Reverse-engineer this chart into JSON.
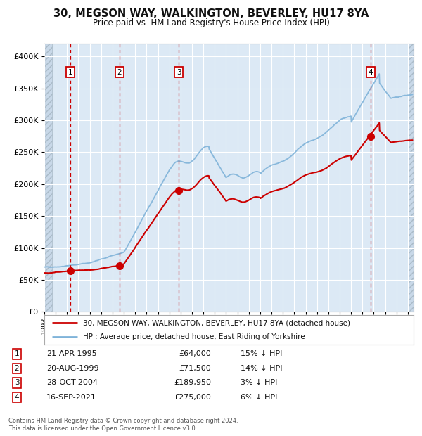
{
  "title": "30, MEGSON WAY, WALKINGTON, BEVERLEY, HU17 8YA",
  "subtitle": "Price paid vs. HM Land Registry's House Price Index (HPI)",
  "sales": [
    {
      "label": "1",
      "date": "21-APR-1995",
      "year": 1995.3,
      "price": 64000,
      "price_str": "£64,000",
      "hpi_pct": "15% ↓ HPI"
    },
    {
      "label": "2",
      "date": "20-AUG-1999",
      "year": 1999.6,
      "price": 71500,
      "price_str": "£71,500",
      "hpi_pct": "14% ↓ HPI"
    },
    {
      "label": "3",
      "date": "28-OCT-2004",
      "year": 2004.83,
      "price": 189950,
      "price_str": "£189,950",
      "hpi_pct": "3% ↓ HPI"
    },
    {
      "label": "4",
      "date": "16-SEP-2021",
      "year": 2021.71,
      "price": 275000,
      "price_str": "£275,000",
      "hpi_pct": "6% ↓ HPI"
    }
  ],
  "property_line_color": "#cc0000",
  "hpi_line_color": "#7fb3d9",
  "sale_marker_color": "#cc0000",
  "vline_color": "#cc0000",
  "background_color": "#dce9f5",
  "grid_color": "#ffffff",
  "ylim": [
    0,
    420000
  ],
  "yticks": [
    0,
    50000,
    100000,
    150000,
    200000,
    250000,
    300000,
    350000,
    400000
  ],
  "xlim_start": 1993.0,
  "xlim_end": 2025.5,
  "legend_line1": "30, MEGSON WAY, WALKINGTON, BEVERLEY, HU17 8YA (detached house)",
  "legend_line2": "HPI: Average price, detached house, East Riding of Yorkshire",
  "footnote": "Contains HM Land Registry data © Crown copyright and database right 2024.\nThis data is licensed under the Open Government Licence v3.0."
}
